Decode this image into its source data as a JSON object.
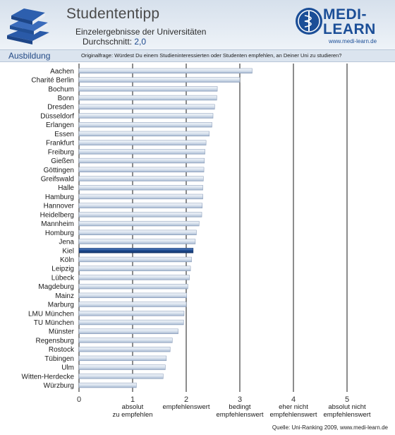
{
  "header": {
    "title": "Studententipp",
    "subtitle": "Einzelergebnisse der Universitäten",
    "average_label": "Durchschnitt:",
    "average_value": "2,0"
  },
  "logo": {
    "brand": "MEDI-\nLEARN",
    "url": "www.medi-learn.de"
  },
  "section": {
    "label": "Ausbildung",
    "question": "Originalfrage: Würdest Du einem Studieninteressierten oder Studenten empfehlen, an Deiner Uni zu studieren?"
  },
  "footer": {
    "source": "Quelle: Uni-Ranking 2009, www.medi-learn.de"
  },
  "colors": {
    "bar_fill_light": "#e6ecf4",
    "bar_fill_mid": "#b4c3d8",
    "bar_highlight": "#1e4b8f",
    "gridline": "#1a1a1a"
  },
  "chart_data": {
    "type": "bar",
    "orientation": "horizontal",
    "xlim": [
      0,
      5
    ],
    "xticks": [
      0,
      1,
      2,
      3,
      4,
      5
    ],
    "tick_descriptions": [
      "",
      "absolut\nzu empfehlen",
      "empfehlenswert",
      "bedingt\nempfehlenswert",
      "eher nicht\nempfehlenswert",
      "absolut nicht\nempfehlenswert"
    ],
    "highlight": "Kiel",
    "grid": true,
    "categories": [
      "Aachen",
      "Charité Berlin",
      "Bochum",
      "Bonn",
      "Dresden",
      "Düsseldorf",
      "Erlangen",
      "Essen",
      "Frankfurt",
      "Freiburg",
      "Gießen",
      "Göttingen",
      "Greifswald",
      "Halle",
      "Hamburg",
      "Hannover",
      "Heidelberg",
      "Mannheim",
      "Homburg",
      "Jena",
      "Kiel",
      "Köln",
      "Leipzig",
      "Lübeck",
      "Magdeburg",
      "Mainz",
      "Marburg",
      "LMU München",
      "TU München",
      "Münster",
      "Regensburg",
      "Rostock",
      "Tübingen",
      "Ulm",
      "Witten-Herdecke",
      "Würzburg"
    ],
    "values": [
      3.23,
      3.0,
      2.58,
      2.57,
      2.53,
      2.5,
      2.48,
      2.43,
      2.37,
      2.35,
      2.34,
      2.33,
      2.32,
      2.31,
      2.31,
      2.3,
      2.29,
      2.24,
      2.19,
      2.17,
      2.13,
      2.1,
      2.08,
      2.06,
      2.03,
      2.01,
      2.0,
      1.96,
      1.95,
      1.85,
      1.74,
      1.7,
      1.63,
      1.61,
      1.57,
      1.07
    ]
  }
}
